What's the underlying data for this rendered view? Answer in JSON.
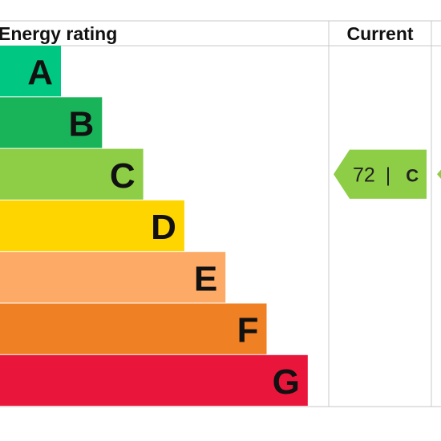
{
  "chart_data": {
    "type": "bar",
    "title": "",
    "header": {
      "rating_label": "Energy rating",
      "current_label": "Current"
    },
    "bands": [
      {
        "letter": "A",
        "color": "#00c781"
      },
      {
        "letter": "B",
        "color": "#19b459"
      },
      {
        "letter": "C",
        "color": "#8dce46"
      },
      {
        "letter": "D",
        "color": "#ffd500"
      },
      {
        "letter": "E",
        "color": "#fcaa65"
      },
      {
        "letter": "F",
        "color": "#ef8023"
      },
      {
        "letter": "G",
        "color": "#e9153b"
      }
    ],
    "current": {
      "score": "72",
      "separator": "|",
      "band": "C",
      "color": "#8dce46"
    },
    "grid_color": "#c8c8c8"
  }
}
